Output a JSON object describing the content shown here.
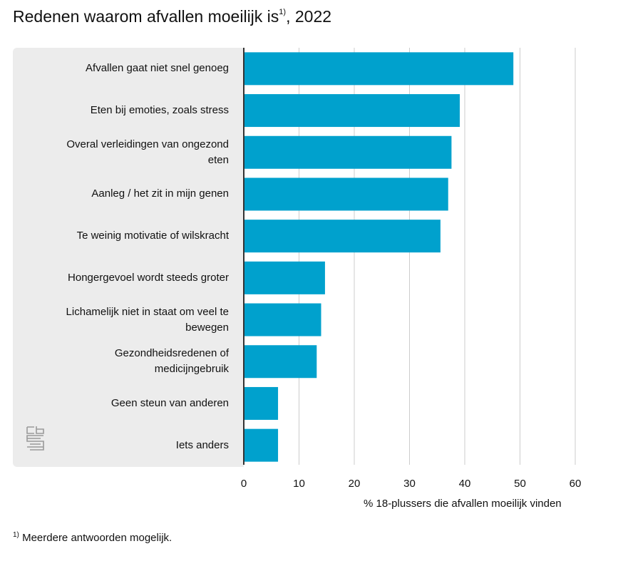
{
  "title": "Redenen waarom afvallen moeilijk is",
  "title_note_marker": "1)",
  "title_year": ", 2022",
  "footnote_marker": "1)",
  "footnote": "Meerdere antwoorden mogelijk.",
  "logo": "cbs-logo",
  "colors": {
    "bar": "#00a1cd",
    "panel": "#ececec",
    "axis": "#333333",
    "grid": "#cccccc"
  },
  "chart_data": {
    "type": "bar",
    "orientation": "horizontal",
    "title": "Redenen waarom afvallen moeilijk is, 2022",
    "xlabel": "% 18-plussers die afvallen moeilijk vinden",
    "ylabel": "",
    "xlim": [
      0,
      60
    ],
    "xticks": [
      0,
      10,
      20,
      30,
      40,
      50,
      60
    ],
    "grid": true,
    "categories": [
      "Afvallen gaat niet snel genoeg",
      "Eten bij emoties, zoals stress",
      "Overal verleidingen van ongezond eten",
      "Aanleg / het zit in mijn genen",
      "Te weinig motivatie of wilskracht",
      "Hongergevoel wordt steeds groter",
      "Lichamelijk niet in staat om veel te bewegen",
      "Gezondheidsredenen of medicijngebruik",
      "Geen steun van anderen",
      "Iets anders"
    ],
    "label_lines": [
      [
        "Afvallen gaat niet snel genoeg"
      ],
      [
        "Eten bij emoties, zoals stress"
      ],
      [
        "Overal verleidingen van ongezond",
        "eten"
      ],
      [
        "Aanleg / het zit in mijn genen"
      ],
      [
        "Te weinig motivatie of wilskracht"
      ],
      [
        "Hongergevoel wordt steeds groter"
      ],
      [
        "Lichamelijk niet in staat om veel te",
        "bewegen"
      ],
      [
        "Gezondheidsredenen of",
        "medicijngebruik"
      ],
      [
        "Geen steun van anderen"
      ],
      [
        "Iets anders"
      ]
    ],
    "values": [
      48.8,
      39.1,
      37.6,
      37.0,
      35.6,
      14.7,
      14.0,
      13.2,
      6.2,
      6.2
    ]
  }
}
